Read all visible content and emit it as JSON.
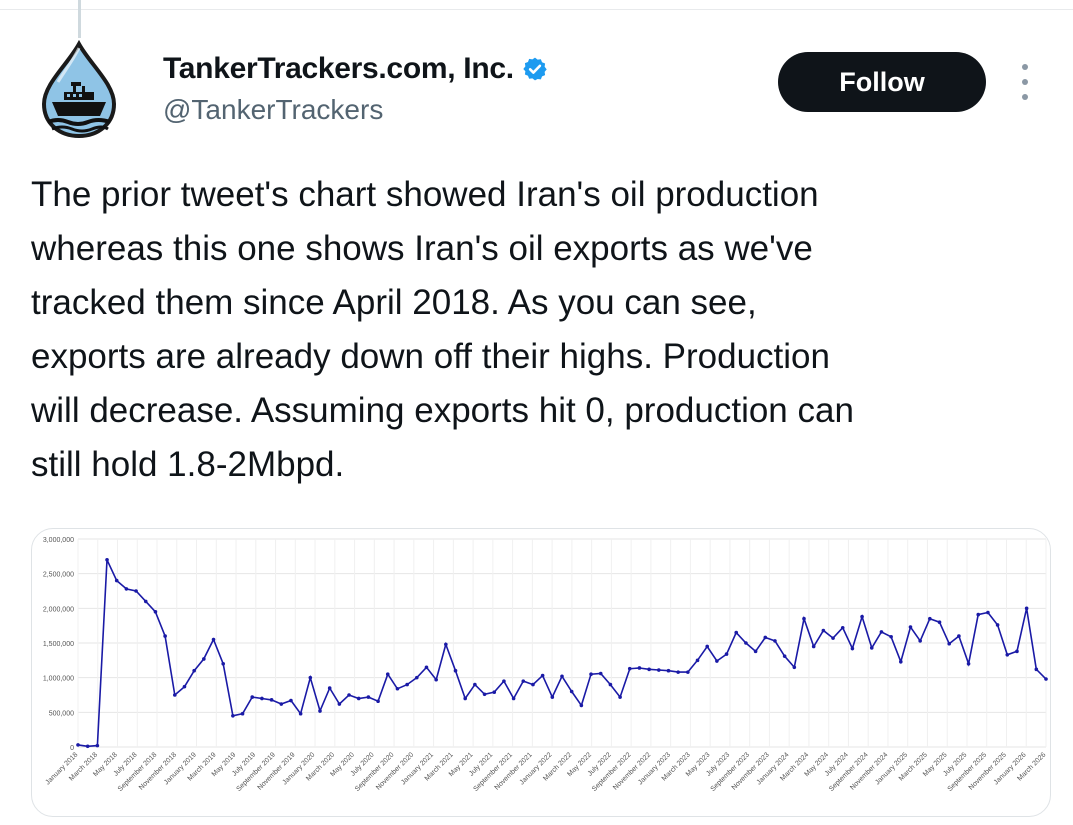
{
  "author": {
    "display_name": "TankerTrackers.com, Inc.",
    "handle": "@TankerTrackers",
    "verified": true,
    "avatar_icon": "oil-drop-tanker-logo-icon"
  },
  "actions": {
    "follow_label": "Follow",
    "more_icon": "more-dots-vertical-icon"
  },
  "tweet": {
    "text": "The prior tweet's chart showed Iran's oil production\nwhereas this one shows Iran's oil exports as we've\ntracked them since April 2018. As you can see,\nexports are already down off their highs. Production\nwill decrease. Assuming exports hit 0, production can\nstill hold 1.8-2Mbpd."
  },
  "colors": {
    "line": "#1a1aa6",
    "accent_blue": "#1d9bf0",
    "button_bg": "#0f1419"
  },
  "chart_data": {
    "type": "line",
    "ylim": [
      0,
      3000000
    ],
    "yticks": [
      "0",
      "500,000",
      "1,000,000",
      "1,500,000",
      "2,000,000",
      "2,500,000",
      "3,000,000"
    ],
    "x_tick_labels": [
      "January 2018",
      "March 2018",
      "May 2018",
      "July 2018",
      "September 2018",
      "November 2018",
      "January 2019",
      "March 2019",
      "May 2019",
      "July 2019",
      "September 2019",
      "November 2019",
      "January 2020",
      "March 2020",
      "May 2020",
      "July 2020",
      "September 2020",
      "November 2020",
      "January 2021",
      "March 2021",
      "May 2021",
      "July 2021",
      "September 2021",
      "November 2021",
      "January 2022",
      "March 2022",
      "May 2022",
      "July 2022",
      "September 2022",
      "November 2022",
      "January 2023",
      "March 2023",
      "May 2023",
      "July 2023",
      "September 2023",
      "November 2023",
      "January 2024",
      "March 2024",
      "May 2024",
      "July 2024",
      "September 2024",
      "November 2024",
      "January 2025",
      "March 2025",
      "May 2025",
      "July 2025",
      "September 2025",
      "November 2025",
      "January 2026",
      "March 2026"
    ],
    "grid": true,
    "series": [
      {
        "values": [
          30000,
          10000,
          20000,
          2700000,
          2400000,
          2280000,
          2250000,
          2100000,
          1950000,
          1600000,
          750000,
          870000,
          1100000,
          1270000,
          1550000,
          1200000,
          450000,
          480000,
          720000,
          700000,
          680000,
          620000,
          670000,
          480000,
          1000000,
          520000,
          850000,
          620000,
          750000,
          700000,
          720000,
          660000,
          1050000,
          840000,
          900000,
          1000000,
          1150000,
          970000,
          1480000,
          1100000,
          700000,
          900000,
          760000,
          790000,
          950000,
          700000,
          950000,
          900000,
          1030000,
          720000,
          1020000,
          800000,
          600000,
          1050000,
          1060000,
          900000,
          720000,
          1130000,
          1140000,
          1120000,
          1110000,
          1100000,
          1080000,
          1080000,
          1250000,
          1450000,
          1240000,
          1340000,
          1650000,
          1500000,
          1380000,
          1580000,
          1530000,
          1310000,
          1150000,
          1850000,
          1450000,
          1680000,
          1570000,
          1720000,
          1420000,
          1880000,
          1430000,
          1660000,
          1590000,
          1230000,
          1730000,
          1530000,
          1850000,
          1800000,
          1490000,
          1600000,
          1200000,
          1910000,
          1940000,
          1760000,
          1330000,
          1380000,
          2000000,
          1120000,
          980000
        ]
      }
    ]
  }
}
